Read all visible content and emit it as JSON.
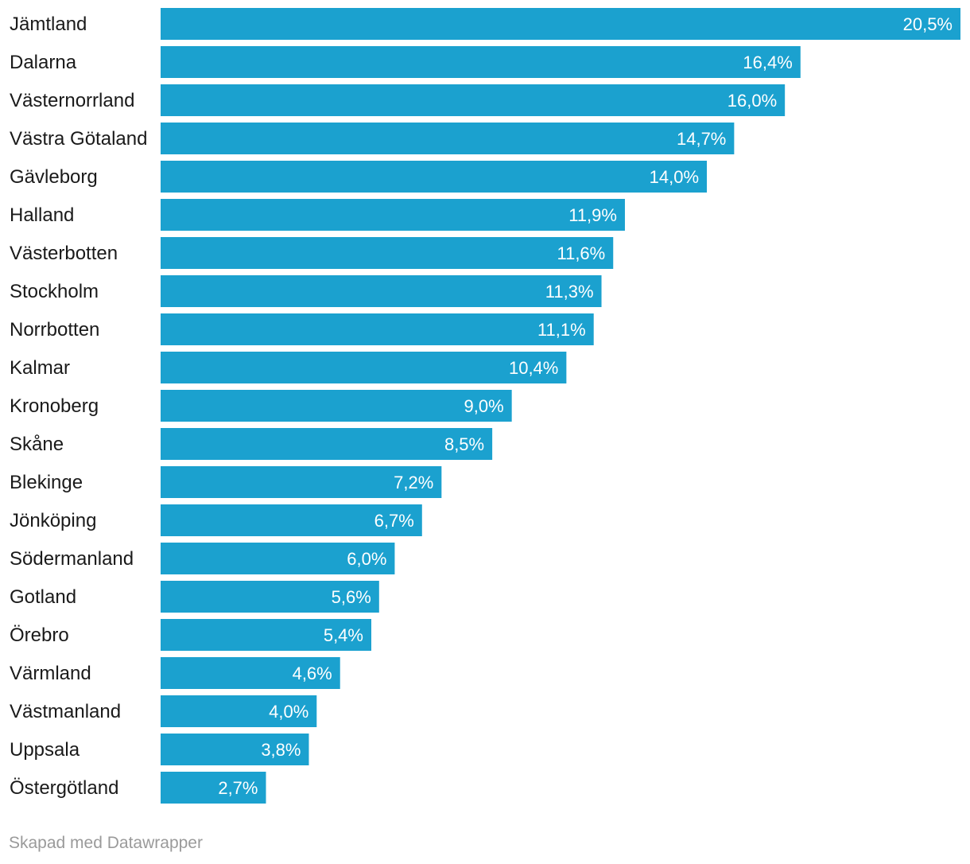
{
  "chart_data": {
    "type": "bar",
    "orientation": "horizontal",
    "categories": [
      "Jämtland",
      "Dalarna",
      "Västernorrland",
      "Västra Götaland",
      "Gävleborg",
      "Halland",
      "Västerbotten",
      "Stockholm",
      "Norrbotten",
      "Kalmar",
      "Kronoberg",
      "Skåne",
      "Blekinge",
      "Jönköping",
      "Södermanland",
      "Gotland",
      "Örebro",
      "Värmland",
      "Västmanland",
      "Uppsala",
      "Östergötland"
    ],
    "values": [
      20.5,
      16.4,
      16.0,
      14.7,
      14.0,
      11.9,
      11.6,
      11.3,
      11.1,
      10.4,
      9.0,
      8.5,
      7.2,
      6.7,
      6.0,
      5.6,
      5.4,
      4.6,
      4.0,
      3.8,
      2.7
    ],
    "value_labels": [
      "20,5%",
      "16,4%",
      "16,0%",
      "14,7%",
      "14,0%",
      "11,9%",
      "11,6%",
      "11,3%",
      "11,1%",
      "10,4%",
      "9,0%",
      "8,5%",
      "7,2%",
      "6,7%",
      "6,0%",
      "5,6%",
      "5,4%",
      "4,6%",
      "4,0%",
      "3,8%",
      "2,7%"
    ],
    "unit": "%",
    "xlim": [
      0,
      20.5
    ],
    "grid": false,
    "bar_color": "#1ba1cf"
  },
  "footer": {
    "credit": "Skapad med Datawrapper"
  }
}
